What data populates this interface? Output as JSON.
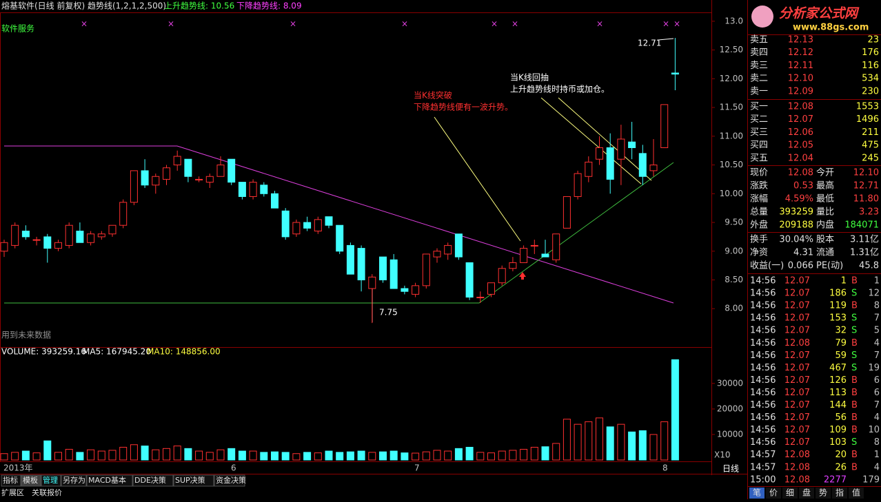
{
  "header": {
    "title": "熔基软件(日线 前复权) 趋势线(1,2,1,2,500)",
    "up_trend": "上升趋势线: 10.56",
    "down_trend": "下降趋势线: 8.09",
    "sector": "软件服务",
    "future_note": "用到未来数据"
  },
  "annotations": {
    "break_line1": "当K线突破",
    "break_line2": "下降趋势线便有一波升势。",
    "pull_line1": "当K线回抽",
    "pull_line2": "上升趋势线时持币或加仓。",
    "high_label": "12.71",
    "low_label": "7.75"
  },
  "price_chart": {
    "type": "candlestick",
    "ylim": [
      7.38,
      13.13
    ],
    "yticks": [
      {
        "value": 13,
        "label": "13.0"
      },
      {
        "value": 12.5,
        "label": "12.50"
      },
      {
        "value": 12,
        "label": "12.00"
      },
      {
        "value": 11.5,
        "label": "11.50"
      },
      {
        "value": 11,
        "label": "11.00"
      },
      {
        "value": 10.5,
        "label": "10.50"
      },
      {
        "value": 10,
        "label": "10.00"
      },
      {
        "value": 9.5,
        "label": "9.50"
      },
      {
        "value": 9,
        "label": "9.00"
      },
      {
        "value": 8.5,
        "label": "8.50"
      },
      {
        "value": 8,
        "label": "8.00"
      }
    ],
    "candles": [
      [
        9.0,
        9.2,
        8.9,
        9.15
      ],
      [
        9.1,
        9.5,
        9.05,
        9.45
      ],
      [
        9.35,
        9.45,
        9.2,
        9.25
      ],
      [
        9.2,
        9.25,
        9.1,
        9.2
      ],
      [
        9.25,
        9.3,
        8.8,
        9.05
      ],
      [
        9.05,
        9.2,
        9.0,
        9.15
      ],
      [
        9.1,
        9.5,
        9.05,
        9.45
      ],
      [
        9.35,
        9.5,
        9.15,
        9.15
      ],
      [
        9.15,
        9.35,
        9.1,
        9.3
      ],
      [
        9.25,
        9.35,
        9.2,
        9.3
      ],
      [
        9.3,
        9.45,
        9.25,
        9.45
      ],
      [
        9.45,
        9.9,
        9.4,
        9.85
      ],
      [
        9.85,
        10.4,
        9.8,
        10.4
      ],
      [
        10.4,
        10.6,
        10.1,
        10.15
      ],
      [
        10.15,
        10.35,
        10.0,
        10.3
      ],
      [
        10.25,
        10.5,
        10.15,
        10.45
      ],
      [
        10.5,
        10.75,
        10.4,
        10.65
      ],
      [
        10.6,
        10.6,
        10.2,
        10.3
      ],
      [
        10.25,
        10.3,
        10.2,
        10.25
      ],
      [
        10.2,
        10.35,
        10.1,
        10.3
      ],
      [
        10.3,
        10.65,
        10.3,
        10.5
      ],
      [
        10.6,
        10.6,
        10.15,
        10.2
      ],
      [
        10.2,
        10.2,
        9.9,
        9.95
      ],
      [
        9.95,
        10.25,
        9.9,
        10.2
      ],
      [
        10.15,
        10.2,
        9.95,
        10.0
      ],
      [
        10.0,
        10.05,
        9.75,
        9.75
      ],
      [
        9.7,
        9.75,
        9.2,
        9.25
      ],
      [
        9.3,
        9.55,
        9.25,
        9.5
      ],
      [
        9.5,
        9.6,
        9.35,
        9.4
      ],
      [
        9.35,
        9.6,
        9.3,
        9.55
      ],
      [
        9.6,
        9.6,
        9.4,
        9.45
      ],
      [
        9.45,
        9.45,
        8.95,
        9.0
      ],
      [
        9.1,
        9.15,
        8.6,
        8.6
      ],
      [
        9.05,
        9.1,
        8.3,
        8.5
      ],
      [
        8.35,
        8.6,
        7.75,
        8.55
      ],
      [
        8.9,
        8.9,
        8.45,
        8.5
      ],
      [
        8.85,
        8.95,
        8.35,
        8.35
      ],
      [
        8.35,
        8.4,
        8.25,
        8.3
      ],
      [
        8.25,
        8.45,
        8.2,
        8.4
      ],
      [
        8.4,
        8.95,
        8.35,
        8.95
      ],
      [
        8.9,
        9.05,
        8.8,
        9.0
      ],
      [
        8.95,
        9.15,
        8.85,
        9.1
      ],
      [
        9.3,
        9.3,
        8.85,
        8.9
      ],
      [
        8.8,
        8.8,
        8.15,
        8.2
      ],
      [
        8.2,
        8.3,
        8.1,
        8.2
      ],
      [
        8.25,
        8.45,
        8.2,
        8.45
      ],
      [
        8.45,
        8.75,
        8.4,
        8.7
      ],
      [
        8.7,
        8.9,
        8.65,
        8.8
      ],
      [
        8.8,
        9.1,
        8.8,
        9.05
      ],
      [
        9.1,
        9.2,
        8.95,
        9.1
      ],
      [
        8.95,
        9.2,
        8.9,
        8.9
      ],
      [
        8.85,
        9.3,
        8.8,
        9.3
      ],
      [
        9.4,
        9.95,
        9.4,
        9.95
      ],
      [
        9.95,
        10.4,
        9.9,
        10.35
      ],
      [
        10.3,
        10.65,
        10.2,
        10.55
      ],
      [
        10.6,
        11.0,
        10.5,
        10.8
      ],
      [
        10.8,
        11.05,
        10.0,
        10.25
      ],
      [
        10.6,
        11.2,
        10.15,
        10.95
      ],
      [
        10.9,
        11.25,
        10.6,
        10.8
      ],
      [
        10.7,
        10.85,
        10.15,
        10.3
      ],
      [
        10.4,
        10.95,
        10.3,
        10.5
      ],
      [
        10.8,
        11.55,
        10.8,
        11.55
      ],
      [
        12.1,
        12.71,
        11.8,
        12.08
      ]
    ],
    "x_labels": [
      "2013年",
      "6",
      "7",
      "8"
    ]
  },
  "volume_chart": {
    "type": "bar",
    "title": "VOLUME: 393259.16",
    "ma5": "MA5: 167945.20",
    "ma10": "MA10: 148856.00",
    "ylim": [
      0,
      44000
    ],
    "yticks": [
      30000,
      20000,
      10000
    ],
    "scale_note": "X10",
    "values": [
      2500,
      3000,
      3500,
      2800,
      7500,
      3000,
      4200,
      3000,
      4000,
      3500,
      3800,
      5000,
      6000,
      5500,
      4000,
      4500,
      5500,
      4500,
      3500,
      3000,
      4000,
      4500,
      3500,
      3500,
      3000,
      3200,
      3000,
      2500,
      3000,
      2800,
      3500,
      3000,
      3200,
      3500,
      3000,
      3200,
      3500,
      2800,
      2700,
      3200,
      3800,
      3500,
      4500,
      5000,
      3000,
      2800,
      3500,
      3800,
      4200,
      5000,
      5200,
      6500,
      16000,
      14000,
      15000,
      16500,
      13000,
      14000,
      11000,
      11500,
      10000,
      15000,
      39326
    ]
  },
  "logo": {
    "name": "分析家公式网",
    "url": "www.88gs.com"
  },
  "order_book": {
    "sell": [
      [
        "卖五",
        "12.13",
        "23"
      ],
      [
        "卖四",
        "12.12",
        "176"
      ],
      [
        "卖三",
        "12.11",
        "116"
      ],
      [
        "卖二",
        "12.10",
        "534"
      ],
      [
        "卖一",
        "12.09",
        "230"
      ]
    ],
    "buy": [
      [
        "买一",
        "12.08",
        "1553"
      ],
      [
        "买二",
        "12.07",
        "1496"
      ],
      [
        "买三",
        "12.06",
        "211"
      ],
      [
        "买四",
        "12.05",
        "475"
      ],
      [
        "买五",
        "12.04",
        "245"
      ]
    ]
  },
  "quote": [
    [
      "现价",
      "12.08",
      "今开",
      "12.10"
    ],
    [
      "涨跌",
      "0.53",
      "最高",
      "12.71"
    ],
    [
      "涨幅",
      "4.59%",
      "最低",
      "11.80"
    ],
    [
      "总量",
      "393259",
      "量比",
      "3.23"
    ],
    [
      "外盘",
      "209188",
      "内盘",
      "184071"
    ]
  ],
  "fundamentals": [
    [
      "换手",
      "30.04%",
      "股本",
      "3.11亿"
    ],
    [
      "净资",
      "4.31",
      "流通",
      "1.31亿"
    ],
    [
      "收益(一)",
      "0.066",
      "PE(动)",
      "45.8"
    ]
  ],
  "ticks": [
    [
      "14:56",
      "12.07",
      "1",
      "B",
      "1"
    ],
    [
      "14:56",
      "12.07",
      "186",
      "S",
      "12"
    ],
    [
      "14:56",
      "12.07",
      "119",
      "B",
      "8"
    ],
    [
      "14:56",
      "12.07",
      "153",
      "S",
      "7"
    ],
    [
      "14:56",
      "12.07",
      "32",
      "S",
      "5"
    ],
    [
      "14:56",
      "12.08",
      "79",
      "B",
      "4"
    ],
    [
      "14:56",
      "12.07",
      "59",
      "S",
      "7"
    ],
    [
      "14:56",
      "12.07",
      "467",
      "S",
      "19"
    ],
    [
      "14:56",
      "12.07",
      "126",
      "B",
      "6"
    ],
    [
      "14:56",
      "12.07",
      "113",
      "B",
      "6"
    ],
    [
      "14:56",
      "12.07",
      "144",
      "B",
      "7"
    ],
    [
      "14:56",
      "12.07",
      "56",
      "B",
      "4"
    ],
    [
      "14:56",
      "12.07",
      "109",
      "B",
      "10"
    ],
    [
      "14:56",
      "12.07",
      "103",
      "S",
      "8"
    ],
    [
      "14:57",
      "12.08",
      "20",
      "B",
      "1"
    ],
    [
      "14:57",
      "12.08",
      "26",
      "B",
      "4"
    ],
    [
      "15:00",
      "12.08",
      "2277",
      "179"
    ]
  ],
  "left_tabs": [
    "指标",
    "模板",
    "管理",
    "另存为",
    "MACD基本",
    "DDE决策",
    "SUP决策",
    "资金决策"
  ],
  "bottom_tabs": [
    "扩展区",
    "关联报价"
  ],
  "period": "日线",
  "right_tabs": [
    "笔",
    "价",
    "细",
    "盘",
    "势",
    "指",
    "值"
  ]
}
